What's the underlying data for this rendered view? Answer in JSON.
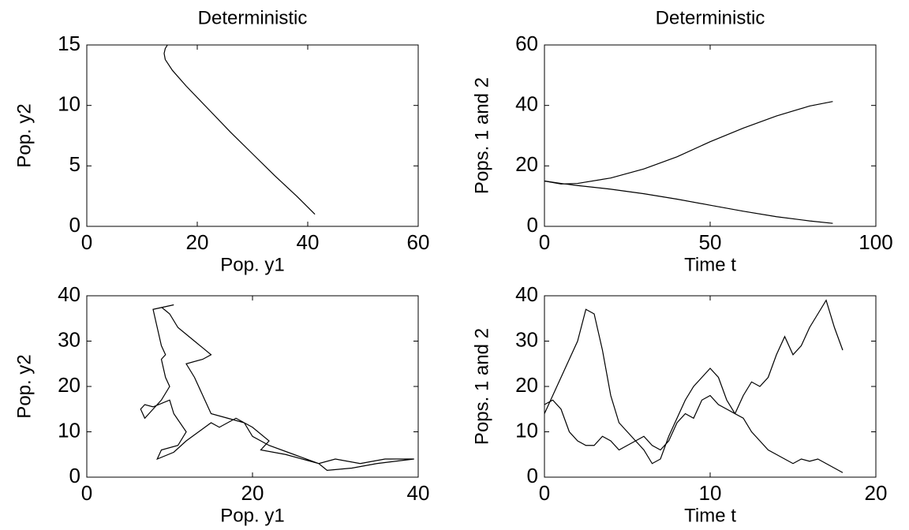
{
  "chart_data": [
    {
      "type": "line",
      "title": "Deterministic",
      "x_label": "Pop. y1",
      "y_label": "Pop. y2",
      "x": [
        41.3,
        38,
        34,
        30,
        26,
        22,
        18,
        15.5,
        14.2,
        14,
        14.2,
        14.6
      ],
      "series": [
        {
          "color": "#000000",
          "values": [
            1,
            2.5,
            4.2,
            6,
            7.8,
            9.7,
            11.6,
            12.9,
            13.8,
            14.3,
            14.7,
            15
          ]
        }
      ],
      "xlim": [
        0,
        60
      ],
      "ylim": [
        0,
        15
      ],
      "xticks": [
        0,
        20,
        40,
        60
      ],
      "yticks": [
        0,
        5,
        10,
        15
      ]
    },
    {
      "type": "line",
      "title": "Deterministic",
      "x_label": "Time t",
      "y_label": "Pops. 1 and 2",
      "x": [
        0,
        5,
        10,
        20,
        30,
        40,
        50,
        60,
        70,
        80,
        87
      ],
      "series": [
        {
          "color": "#000000",
          "values": [
            15,
            14,
            14.2,
            16,
            19,
            23,
            28,
            32.5,
            36.5,
            39.8,
            41.3
          ]
        },
        {
          "color": "#000000",
          "values": [
            15,
            14.2,
            13.5,
            12.3,
            10.8,
            9,
            7,
            5,
            3.2,
            1.8,
            1
          ]
        }
      ],
      "xlim": [
        0,
        100
      ],
      "ylim": [
        0,
        60
      ],
      "xticks": [
        0,
        50,
        100
      ],
      "yticks": [
        0,
        20,
        40,
        60
      ]
    },
    {
      "type": "line",
      "x_label": "Pop. y1",
      "y_label": "Pop. y2",
      "x": [
        10.5,
        8,
        8.5,
        9,
        9.5,
        9,
        9.5,
        10,
        9,
        8,
        7,
        6.5,
        7,
        8,
        10,
        10.5,
        12,
        11,
        9,
        8.5,
        10.5,
        12,
        15,
        16,
        18,
        20,
        22,
        21,
        24,
        28,
        30,
        33,
        36,
        39.5,
        35,
        32,
        29,
        28,
        25,
        22,
        20,
        19,
        17,
        15,
        14,
        13,
        12,
        14,
        15,
        13,
        11,
        10,
        9
      ],
      "series": [
        {
          "color": "#000000",
          "values": [
            38,
            37,
            33,
            29,
            27,
            26,
            22,
            20,
            17,
            15,
            13,
            15,
            16,
            15.5,
            17,
            14,
            10,
            7,
            6,
            4,
            5.5,
            8,
            12,
            11,
            13,
            11,
            8,
            6,
            5,
            3,
            4,
            3,
            4,
            4,
            3,
            2,
            1.5,
            3,
            5,
            7,
            9,
            12,
            13,
            14,
            18,
            22,
            25,
            26,
            27,
            30,
            33,
            36,
            37.5
          ]
        }
      ],
      "xlim": [
        0,
        40
      ],
      "ylim": [
        0,
        40
      ],
      "xticks": [
        0,
        20,
        40
      ],
      "yticks": [
        0,
        10,
        20,
        30,
        40
      ]
    },
    {
      "type": "line",
      "x_label": "Time t",
      "y_label": "Pops. 1 and 2",
      "x": [
        0,
        0.5,
        1,
        1.5,
        2,
        2.5,
        3,
        3.5,
        4,
        4.5,
        5,
        5.5,
        6,
        6.5,
        7,
        7.5,
        8,
        8.5,
        9,
        9.5,
        10,
        10.5,
        11,
        11.5,
        12,
        12.5,
        13,
        13.5,
        14,
        14.5,
        15,
        15.5,
        16,
        16.5,
        17,
        17.5,
        18
      ],
      "series": [
        {
          "color": "#000000",
          "values": [
            14,
            18,
            22,
            26,
            30,
            37,
            36,
            28,
            18,
            12,
            10,
            8,
            6,
            3,
            4,
            9,
            13,
            17,
            20,
            22,
            24,
            22,
            17,
            14,
            13,
            10,
            8,
            6,
            5,
            4,
            3,
            4,
            3.5,
            4,
            3,
            2,
            1
          ]
        },
        {
          "color": "#000000",
          "values": [
            16,
            17,
            15,
            10,
            8,
            7,
            7,
            9,
            8,
            6,
            7,
            8,
            9,
            7,
            6,
            8,
            12,
            14,
            13,
            17,
            18,
            16,
            15,
            14,
            18,
            21,
            20,
            22,
            27,
            31,
            27,
            29,
            33,
            36,
            39,
            33,
            28
          ]
        }
      ],
      "xlim": [
        0,
        20
      ],
      "ylim": [
        0,
        40
      ],
      "xticks": [
        0,
        10,
        20
      ],
      "yticks": [
        0,
        10,
        20,
        30,
        40
      ]
    }
  ]
}
